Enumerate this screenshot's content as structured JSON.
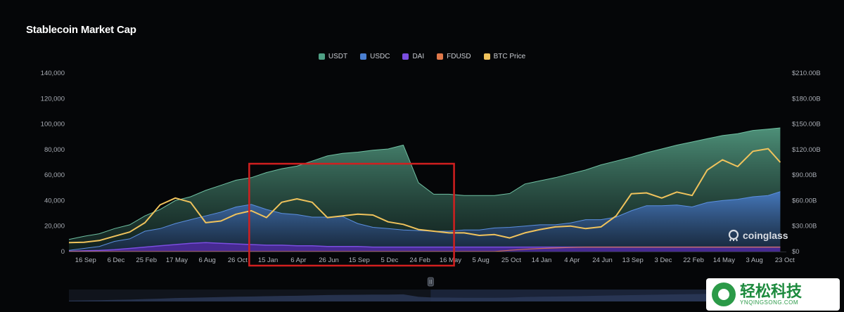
{
  "title": "Stablecoin Market Cap",
  "legend": [
    {
      "label": "USDT",
      "color": "#4fa085"
    },
    {
      "label": "USDC",
      "color": "#4a7fd1"
    },
    {
      "label": "DAI",
      "color": "#7a4de0"
    },
    {
      "label": "FDUSD",
      "color": "#e0784a"
    },
    {
      "label": "BTC Price",
      "color": "#f0c35c"
    }
  ],
  "brand": "coinglass",
  "watermark": {
    "main": "轻松科技",
    "sub": "YNQINGSONG.COM"
  },
  "highlight_color": "#d11f1f",
  "chart_data": {
    "type": "area",
    "title": "Stablecoin Market Cap",
    "y_left_ticks": [
      "0",
      "20,000",
      "40,000",
      "60,000",
      "80,000",
      "100,000",
      "120,000",
      "140,000"
    ],
    "y_right_ticks": [
      "$0",
      "$30.00B",
      "$60.00B",
      "$90.00B",
      "$120.00B",
      "$150.00B",
      "$180.00B",
      "$210.00B"
    ],
    "ylim_left": [
      0,
      140000
    ],
    "ylim_right": [
      0,
      210
    ],
    "x_ticks": [
      "16 Sep",
      "6 Dec",
      "25 Feb",
      "17 May",
      "6 Aug",
      "26 Oct",
      "15 Jan",
      "6 Apr",
      "26 Jun",
      "15 Sep",
      "5 Dec",
      "24 Feb",
      "16 May",
      "5 Aug",
      "25 Oct",
      "14 Jan",
      "4 Apr",
      "24 Jun",
      "13 Sep",
      "3 Dec",
      "22 Feb",
      "14 May",
      "3 Aug",
      "23 Oct"
    ],
    "x": [
      0,
      0.5,
      1,
      1.5,
      2,
      2.5,
      3,
      3.5,
      4,
      4.5,
      5,
      5.5,
      6,
      6.5,
      7,
      7.5,
      8,
      8.5,
      9,
      9.5,
      10,
      10.5,
      11,
      11.5,
      12,
      12.5,
      13,
      13.5,
      14,
      14.5,
      15,
      15.5,
      16,
      16.5,
      17,
      17.5,
      18,
      18.5,
      19,
      19.5,
      20,
      20.5,
      21,
      21.5,
      22,
      22.5,
      23,
      23.4
    ],
    "series": [
      {
        "name": "USDT",
        "axis": "left",
        "color": "#4fa085",
        "values": [
          9500,
          12000,
          14000,
          18000,
          21000,
          28000,
          33000,
          40000,
          43000,
          48000,
          52000,
          56000,
          58000,
          62000,
          65000,
          67000,
          71000,
          75000,
          77000,
          78000,
          79500,
          80500,
          83500,
          54000,
          45000,
          45000,
          44000,
          44000,
          44000,
          45500,
          53000,
          55500,
          58000,
          61000,
          64000,
          68000,
          71000,
          74000,
          77500,
          80500,
          83500,
          86000,
          88500,
          91000,
          92500,
          95000,
          96000,
          97000
        ]
      },
      {
        "name": "USDC",
        "axis": "left",
        "color": "#4a7fd1",
        "values": [
          1000,
          2500,
          4000,
          8000,
          10000,
          16000,
          18000,
          22000,
          25000,
          28000,
          31000,
          35000,
          37000,
          33000,
          30000,
          29000,
          27000,
          27000,
          27500,
          22000,
          19000,
          18000,
          17000,
          16500,
          16000,
          16000,
          17000,
          17000,
          18500,
          19000,
          20000,
          21000,
          21000,
          22500,
          25000,
          25000,
          27000,
          32000,
          36000,
          36000,
          36500,
          35000,
          38500,
          40000,
          41000,
          43000,
          44000,
          47000
        ]
      },
      {
        "name": "DAI",
        "axis": "left",
        "color": "#7a4de0",
        "values": [
          300,
          600,
          900,
          1500,
          2500,
          3500,
          4500,
          5500,
          6500,
          7000,
          6500,
          6000,
          5500,
          5000,
          5000,
          4500,
          4500,
          4000,
          4000,
          4000,
          3500,
          3500,
          3500,
          3500,
          3500,
          3500,
          3500,
          3500,
          3500,
          3500,
          3500,
          3500,
          3500,
          3500,
          3500,
          3500,
          3500,
          3500,
          3500,
          3500,
          3500,
          3500,
          3500,
          3500,
          3500,
          3500,
          3500,
          3500
        ]
      },
      {
        "name": "FDUSD",
        "axis": "left",
        "color": "#e0784a",
        "values": [
          0,
          0,
          0,
          0,
          0,
          0,
          0,
          0,
          0,
          0,
          0,
          0,
          0,
          0,
          0,
          0,
          0,
          0,
          0,
          0,
          0,
          0,
          0,
          0,
          0,
          0,
          0,
          0,
          0,
          1000,
          1800,
          2400,
          2800,
          3200,
          3500,
          3500,
          3500,
          3500,
          3500,
          3500,
          3500,
          3500,
          3500,
          3500,
          3500,
          3500,
          3500,
          3500
        ]
      },
      {
        "name": "BTC Price",
        "axis": "right",
        "color": "#f0c35c",
        "values": [
          10.5,
          11,
          13,
          18,
          23,
          34,
          55,
          63,
          58,
          34,
          36,
          44,
          48,
          40,
          58,
          62,
          58,
          40,
          42,
          44,
          43,
          35,
          32,
          26,
          24,
          22,
          22,
          19,
          20,
          16,
          22,
          26,
          29,
          30,
          27,
          29,
          42,
          68,
          69,
          63,
          70,
          66,
          96,
          108,
          100,
          118,
          121,
          105
        ]
      }
    ],
    "highlight_range_x": [
      6.0,
      12.6
    ],
    "grid": false,
    "legend_position": "top-center"
  }
}
